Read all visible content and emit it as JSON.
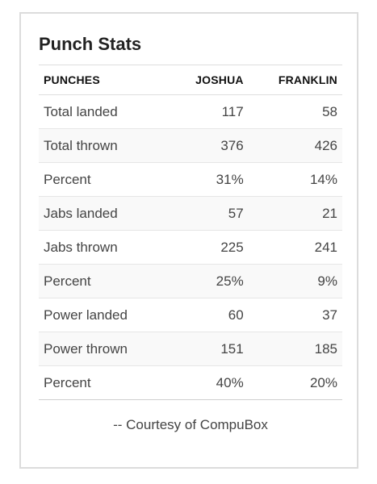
{
  "card": {
    "title": "Punch Stats",
    "credit": "-- Courtesy of CompuBox"
  },
  "table": {
    "headers": [
      "PUNCHES",
      "JOSHUA",
      "FRANKLIN"
    ],
    "rows": [
      {
        "label": "Total landed",
        "joshua": "117",
        "franklin": "58"
      },
      {
        "label": "Total thrown",
        "joshua": "376",
        "franklin": "426"
      },
      {
        "label": "Percent",
        "joshua": "31%",
        "franklin": "14%"
      },
      {
        "label": "Jabs landed",
        "joshua": "57",
        "franklin": "21"
      },
      {
        "label": "Jabs thrown",
        "joshua": "225",
        "franklin": "241"
      },
      {
        "label": "Percent",
        "joshua": "25%",
        "franklin": "9%"
      },
      {
        "label": "Power landed",
        "joshua": "60",
        "franklin": "37"
      },
      {
        "label": "Power thrown",
        "joshua": "151",
        "franklin": "185"
      },
      {
        "label": "Percent",
        "joshua": "40%",
        "franklin": "20%"
      }
    ]
  }
}
